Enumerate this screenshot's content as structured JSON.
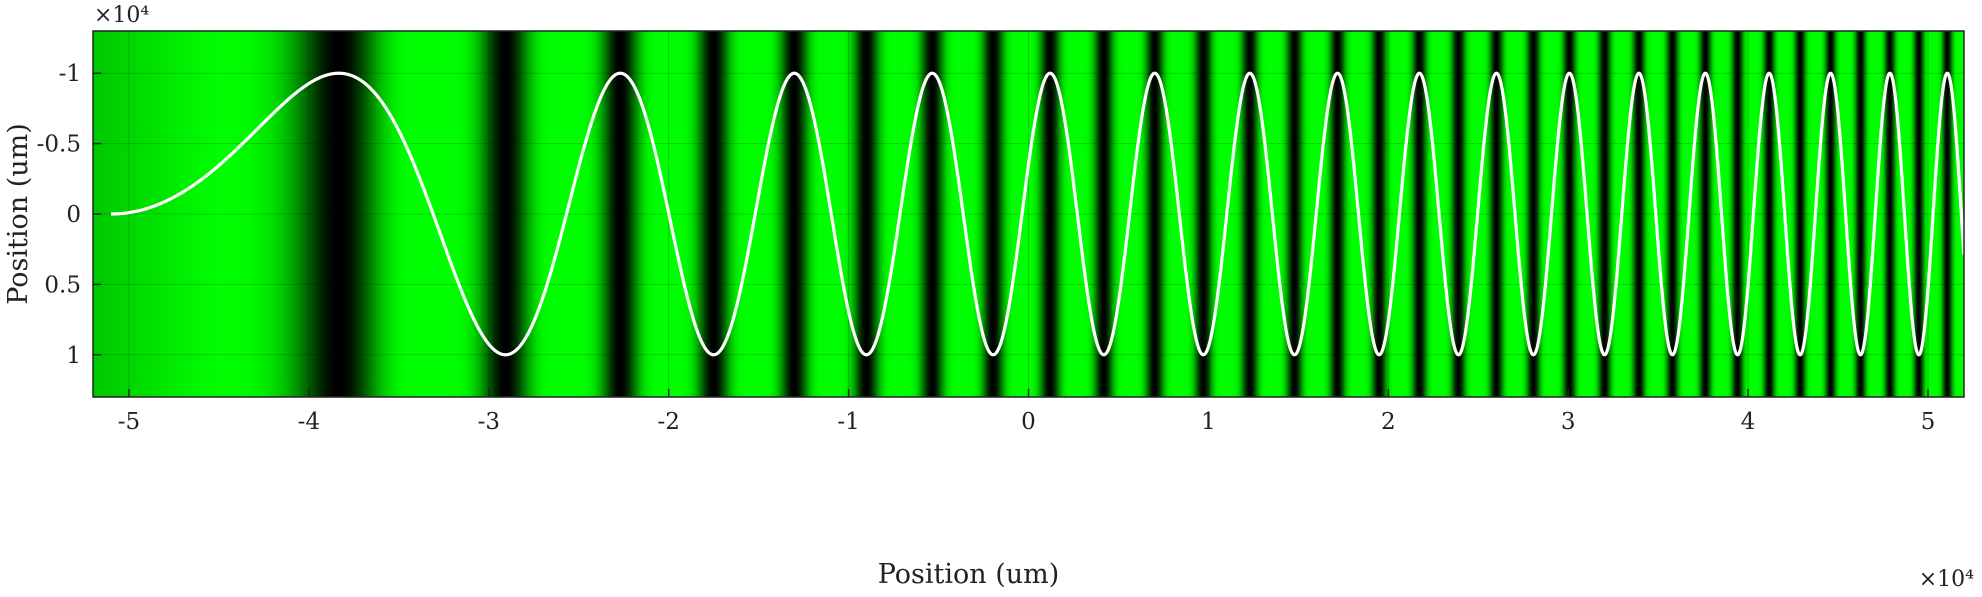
{
  "chart_data": {
    "type": "line",
    "title": "",
    "xlabel": "Position (um)",
    "ylabel": "Position (um)",
    "x_exponent_label": "×10⁴",
    "y_exponent_label": "×10⁴",
    "xlim": [
      -5.2,
      5.2
    ],
    "ylim": [
      1.3,
      -1.3
    ],
    "y_axis_reversed": true,
    "grid": true,
    "x_ticks": [
      -5,
      -4,
      -3,
      -2,
      -1,
      0,
      1,
      2,
      3,
      4,
      5
    ],
    "x_tick_labels": [
      "-5",
      "-4",
      "-3",
      "-2",
      "-1",
      "0",
      "1",
      "2",
      "3",
      "4",
      "5"
    ],
    "y_ticks": [
      -1,
      -0.5,
      0,
      0.5,
      1
    ],
    "y_tick_labels": [
      "-1",
      "-0.5",
      "0",
      "0.5",
      "1"
    ],
    "background": {
      "type": "heatmap",
      "colormap": "green",
      "description_values": "intensity fringes, dark at extrema of chirped sine"
    },
    "series": [
      {
        "color": "#ffffff",
        "model": "y = -sin(A*(x - x0)^2)",
        "A": 0.98,
        "x0": -5.1,
        "amplitude": 1.0,
        "x_range": [
          -5.1,
          5.2
        ],
        "points": [
          [
            -5.1,
            0.0
          ],
          [
            -4.5,
            -0.35
          ],
          [
            -3.5,
            -1.0
          ],
          [
            -2.65,
            1.0
          ],
          [
            -2.2,
            -1.0
          ],
          [
            -1.82,
            1.0
          ],
          [
            -1.52,
            -1.0
          ],
          [
            -1.27,
            1.0
          ],
          [
            -1.04,
            -1.0
          ],
          [
            -0.84,
            1.0
          ],
          [
            -0.66,
            -1.0
          ],
          [
            -0.49,
            1.0
          ],
          [
            -0.33,
            -1.0
          ],
          [
            -0.18,
            1.0
          ],
          [
            -0.03,
            -1.0
          ]
        ]
      }
    ],
    "colors": {
      "fringe_bright": "#00ff00",
      "fringe_dark": "#000000",
      "line": "#ffffff",
      "grid": "#000000"
    }
  }
}
